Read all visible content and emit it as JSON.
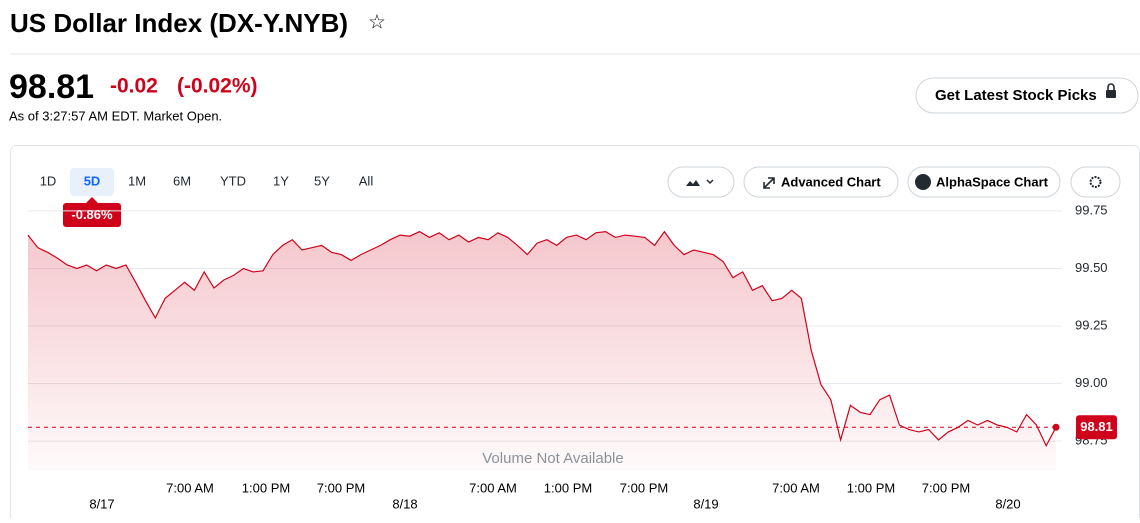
{
  "header": {
    "title": "US Dollar Index (DX-Y.NYB)",
    "price": "98.81",
    "change": "-0.02",
    "change_pct": "(-0.02%)",
    "as_of": "As of 3:27:57 AM EDT. Market Open.",
    "cta": "Get Latest Stock Picks"
  },
  "toolbar": {
    "ranges": [
      "1D",
      "5D",
      "1M",
      "6M",
      "YTD",
      "1Y",
      "5Y",
      "All"
    ],
    "selected": "5D",
    "buttons": [
      "Advanced Chart",
      "AlphaSpace Chart"
    ]
  },
  "chart_data": {
    "type": "area",
    "color": "#d0021b",
    "period_change": "-0.86%",
    "values": [
      99.645,
      99.59,
      99.57,
      99.545,
      99.515,
      99.5,
      99.515,
      99.49,
      99.515,
      99.5,
      99.515,
      99.44,
      99.36,
      99.285,
      99.37,
      99.405,
      99.44,
      99.405,
      99.485,
      99.415,
      99.45,
      99.47,
      99.5,
      99.485,
      99.49,
      99.56,
      99.6,
      99.625,
      99.58,
      99.59,
      99.6,
      99.57,
      99.56,
      99.535,
      99.56,
      99.58,
      99.6,
      99.625,
      99.645,
      99.64,
      99.66,
      99.635,
      99.655,
      99.625,
      99.645,
      99.615,
      99.635,
      99.625,
      99.655,
      99.635,
      99.6,
      99.56,
      99.61,
      99.625,
      99.6,
      99.635,
      99.645,
      99.625,
      99.655,
      99.66,
      99.635,
      99.645,
      99.64,
      99.635,
      99.6,
      99.66,
      99.6,
      99.56,
      99.58,
      99.57,
      99.56,
      99.53,
      99.46,
      99.485,
      99.405,
      99.425,
      99.36,
      99.37,
      99.405,
      99.37,
      99.145,
      98.995,
      98.93,
      98.755,
      98.905,
      98.875,
      98.865,
      98.93,
      98.95,
      98.82,
      98.8,
      98.79,
      98.8,
      98.755,
      98.79,
      98.81,
      98.84,
      98.82,
      98.84,
      98.82,
      98.81,
      98.79,
      98.865,
      98.82,
      98.73,
      98.81
    ],
    "price_marker": 98.81,
    "ylim": [
      98.72,
      99.78
    ],
    "yticks": [
      99.75,
      {
        "value": 99.5,
        "label": "99.50"
      },
      99.25,
      {
        "value": 99,
        "label": "99.00"
      },
      98.75
    ],
    "grid": true,
    "x_labels": [
      "7:00 AM",
      "1:00 PM",
      "7:00 PM",
      "7:00 AM",
      "1:00 PM",
      "7:00 PM",
      "7:00 AM",
      "1:00 PM",
      "7:00 PM"
    ],
    "date_labels": [
      "8/17",
      "8/18",
      "8/19",
      "8/20"
    ],
    "note": "Volume Not Available"
  }
}
